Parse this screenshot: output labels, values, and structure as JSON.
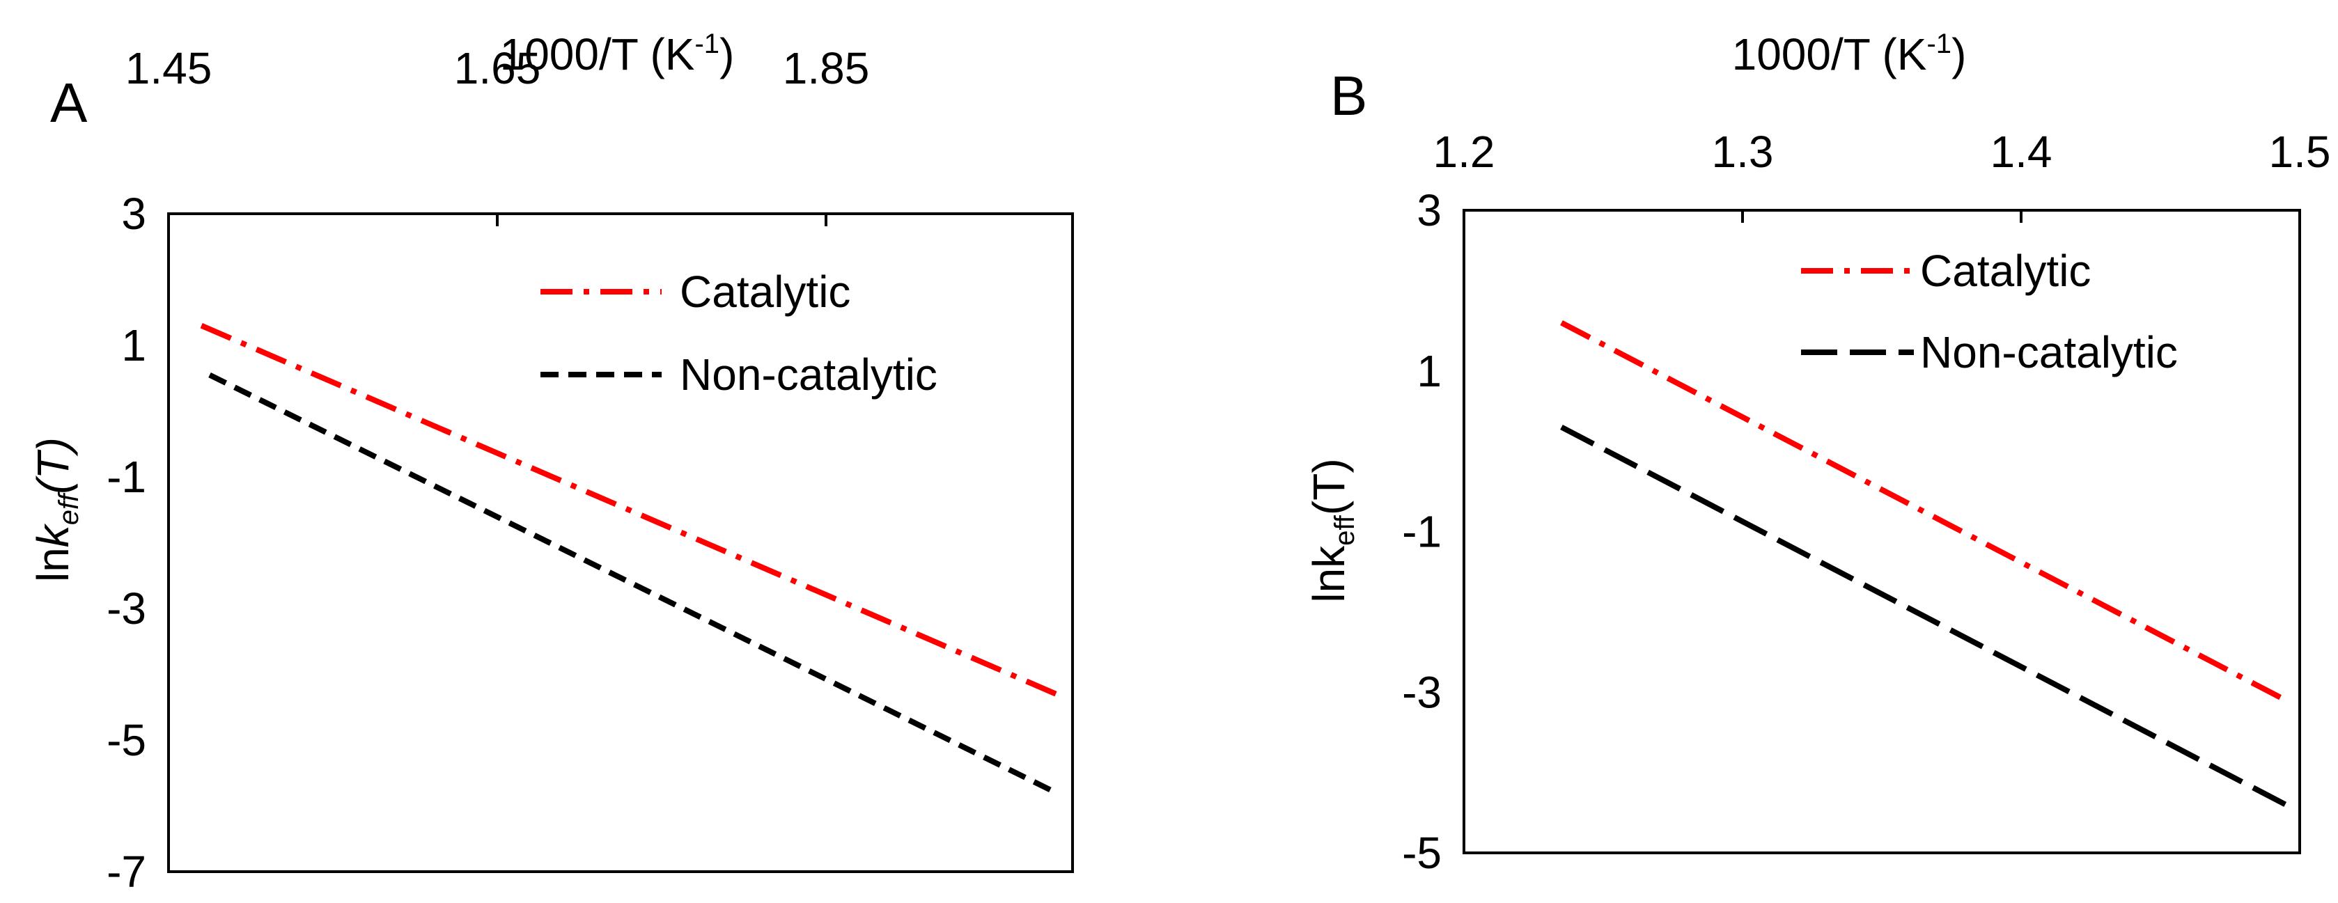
{
  "colors": {
    "catalytic": "#ff0000",
    "non_catalytic": "#000000",
    "axes": "#000000",
    "background": "#ffffff"
  },
  "chart_data": [
    {
      "panel_label": "A",
      "type": "line",
      "x_title": {
        "main": "1000/T (K",
        "sup": "-1",
        "close": ")"
      },
      "y_title": {
        "prefix": "ln",
        "k": "k",
        "sub": "eff",
        "rest": "(",
        "T": "T",
        "close": ")"
      },
      "xlim": [
        1.45,
        2.0
      ],
      "ylim": [
        -7,
        3
      ],
      "xticks": [
        1.45,
        1.65,
        1.85
      ],
      "xtick_labels": [
        "1.45",
        "1.65",
        "1.85"
      ],
      "yticks": [
        3,
        1,
        -1,
        -3,
        -5,
        -7
      ],
      "ytick_labels": [
        "3",
        "1",
        "-1",
        "-3",
        "-5",
        "-7"
      ],
      "legend": [
        "Catalytic",
        "Non-catalytic"
      ],
      "series": [
        {
          "name": "Catalytic",
          "style": "dashdot",
          "x": [
            1.47,
            1.99
          ],
          "y": [
            1.3,
            -4.3
          ]
        },
        {
          "name": "Non-catalytic",
          "style": "dash",
          "x": [
            1.475,
            1.99
          ],
          "y": [
            0.55,
            -5.8
          ]
        }
      ]
    },
    {
      "panel_label": "B",
      "type": "line",
      "x_title": {
        "main": "1000/T (K",
        "sup": "-1",
        "close": ")"
      },
      "y_title": {
        "prefix": "lnk",
        "sub": "eff",
        "rest": "(T)"
      },
      "xlim": [
        1.2,
        1.5
      ],
      "ylim": [
        -5,
        3
      ],
      "xticks": [
        1.2,
        1.3,
        1.4,
        1.5
      ],
      "xtick_labels": [
        "1.2",
        "1.3",
        "1.4",
        "1.5"
      ],
      "yticks": [
        3,
        1,
        -1,
        -3,
        -5
      ],
      "ytick_labels": [
        "3",
        "1",
        "-1",
        "-3",
        "-5"
      ],
      "legend": [
        "Catalytic",
        "Non-catalytic"
      ],
      "series": [
        {
          "name": "Catalytic",
          "style": "dashdot",
          "x": [
            1.235,
            1.495
          ],
          "y": [
            1.6,
            -3.1
          ]
        },
        {
          "name": "Non-catalytic",
          "style": "longdash",
          "x": [
            1.235,
            1.495
          ],
          "y": [
            0.3,
            -4.4
          ]
        }
      ]
    }
  ]
}
